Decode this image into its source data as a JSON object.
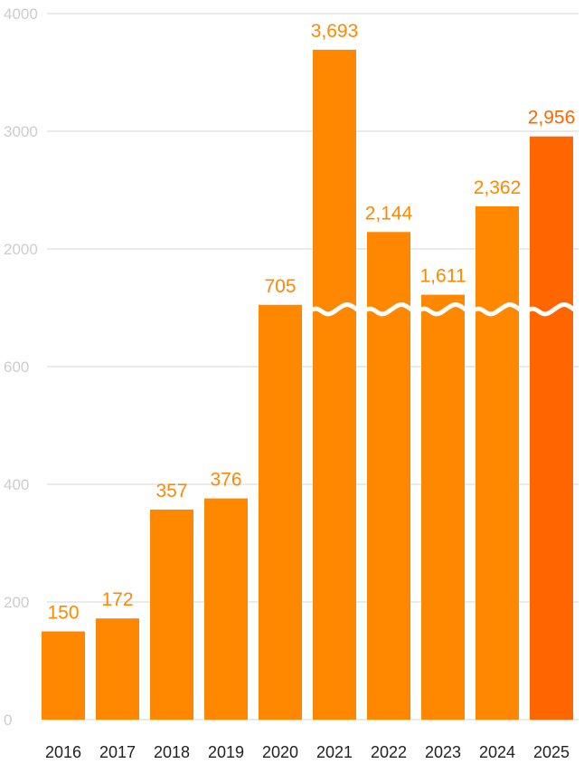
{
  "chart_data": {
    "type": "bar",
    "categories": [
      "2016",
      "2017",
      "2018",
      "2019",
      "2020",
      "2021",
      "2022",
      "2023",
      "2024",
      "2025"
    ],
    "values": [
      150,
      172,
      357,
      376,
      705,
      3693,
      2144,
      1611,
      2362,
      2956
    ],
    "data_labels": [
      "150",
      "172",
      "357",
      "376",
      "705",
      "3,693",
      "2,144",
      "1,611",
      "2,362",
      "2,956"
    ],
    "axis_break": true,
    "y_ticks_lower": [
      "0",
      "200",
      "400",
      "600"
    ],
    "y_ticks_upper": [
      "2000",
      "3000",
      "4000"
    ],
    "ylim_lower": [
      0,
      800
    ],
    "ylim_upper": [
      1000,
      4000
    ],
    "grid": true,
    "colors": {
      "bar": "#ff8800",
      "highlight_bar": "#ff6600",
      "label": "#ff8800",
      "highlight_label": "#ff6600"
    },
    "highlight_category": "2025"
  }
}
